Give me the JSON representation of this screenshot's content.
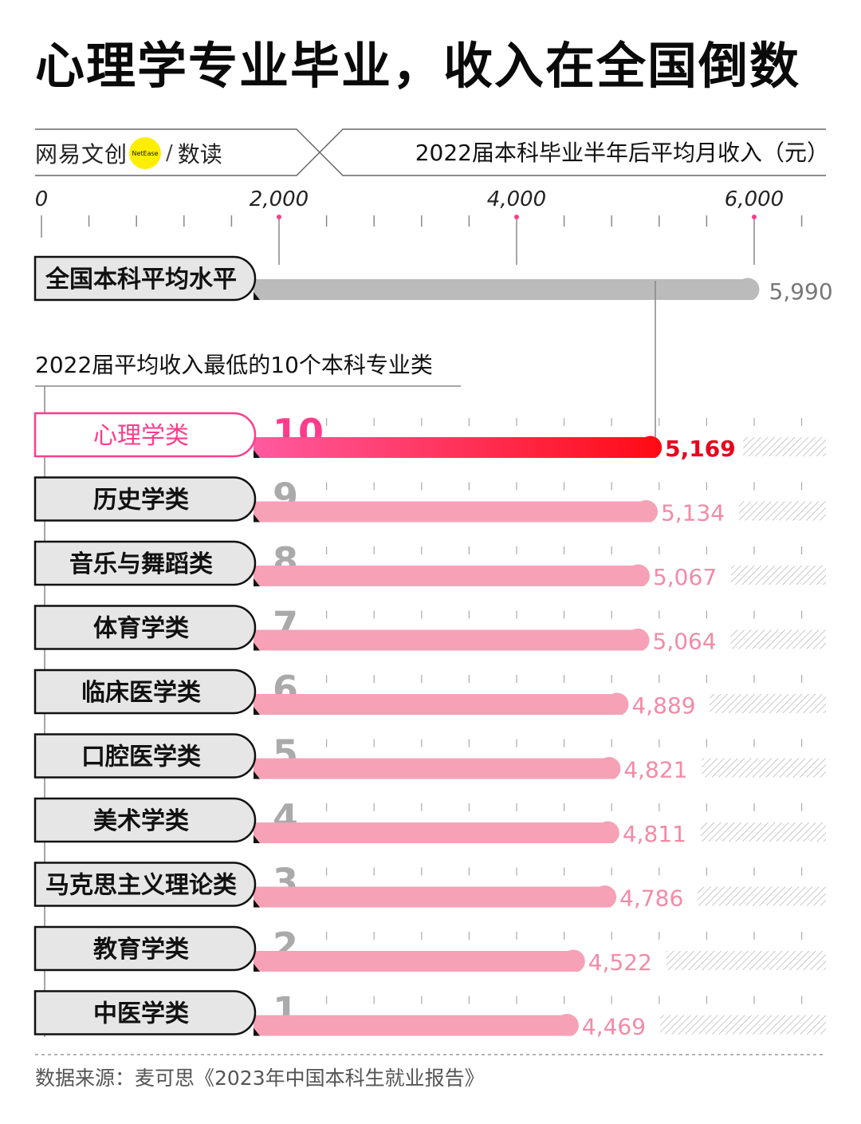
{
  "title": "心理学专业毕业，收入在全国倒数",
  "brand": {
    "name": "网易文创",
    "logo_text": "NetEase",
    "sub": "数读"
  },
  "header_label": "2022届本科毕业半年后平均月收入（元）",
  "section_title": "2022届平均收入最低的10个本科专业类",
  "source": "数据来源：麦可思《2023年中国本科生就业报告》",
  "colors": {
    "highlight": "#ff0a1e",
    "bar": "#f7a1b6",
    "average_bar": "#bbbbbb",
    "highlight_text": "#e8001c",
    "value_text": "#f48aa6"
  },
  "chart_data": {
    "type": "bar",
    "orientation": "horizontal",
    "xlabel": "2022届本科毕业半年后平均月收入（元）",
    "xlim": [
      0,
      6500
    ],
    "ticks": [
      0,
      2000,
      4000,
      6000
    ],
    "tick_labels": [
      "0",
      "2,000",
      "4,000",
      "6,000"
    ],
    "average": {
      "label": "全国本科平均水平",
      "value": 5990,
      "value_label": "5,990"
    },
    "categories": [
      "心理学类",
      "历史学类",
      "音乐与舞蹈类",
      "体育学类",
      "临床医学类",
      "口腔医学类",
      "美术学类",
      "马克思主义理论类",
      "教育学类",
      "中医学类"
    ],
    "ranks": [
      "10",
      "9",
      "8",
      "7",
      "6",
      "5",
      "4",
      "3",
      "2",
      "1"
    ],
    "values": [
      5169,
      5134,
      5067,
      5064,
      4889,
      4821,
      4811,
      4786,
      4522,
      4469
    ],
    "value_labels": [
      "5,169",
      "5,134",
      "5,067",
      "5,064",
      "4,889",
      "4,821",
      "4,811",
      "4,786",
      "4,522",
      "4,469"
    ],
    "highlight_index": 0
  }
}
